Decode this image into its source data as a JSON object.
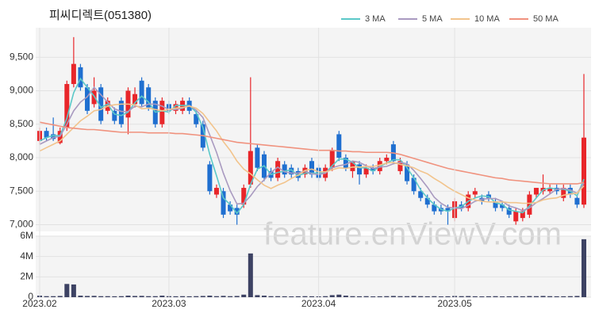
{
  "watermark": "feature.enViewV.com",
  "chart_data": [
    {
      "type": "candlestick",
      "title": "피씨디렉트(051380)",
      "up_color": "#e8262a",
      "down_color": "#1f6fd0",
      "open": [
        8250,
        8400,
        8350,
        8220,
        8450,
        9100,
        9350,
        9050,
        8800,
        9050,
        8700,
        8700,
        8850,
        8600,
        8800,
        9150,
        9050,
        8850,
        8500,
        8800,
        8700,
        8700,
        8850,
        8650,
        8500,
        7900,
        7450,
        7500,
        7300,
        7250,
        7300,
        7600,
        8150,
        8050,
        7800,
        7700,
        7900,
        7850,
        7800,
        7750,
        7950,
        7850,
        7700,
        7850,
        8350,
        8000,
        7800,
        7900,
        7750,
        7850,
        7800,
        7950,
        8200,
        7800,
        7900,
        7700,
        7500,
        7400,
        7300,
        7250,
        7250,
        7100,
        7300,
        7250,
        7450,
        7400,
        7450,
        7350,
        7300,
        7250,
        7050,
        7100,
        7150,
        7450,
        7500,
        7500,
        7550,
        7400,
        7550,
        7400,
        7300
      ],
      "high": [
        8450,
        8450,
        8600,
        8450,
        9150,
        9800,
        9400,
        9100,
        9200,
        9100,
        8900,
        8750,
        8900,
        9050,
        9050,
        9200,
        9100,
        8900,
        8900,
        8850,
        8850,
        8900,
        8900,
        8700,
        8550,
        7950,
        7600,
        7550,
        7350,
        7300,
        7600,
        9200,
        8200,
        8100,
        7850,
        8000,
        7950,
        7900,
        7850,
        7900,
        8000,
        7900,
        7900,
        8150,
        8400,
        8050,
        7950,
        7950,
        7900,
        7900,
        8000,
        8050,
        8250,
        8000,
        7950,
        7750,
        7550,
        7450,
        7350,
        7300,
        7300,
        7400,
        7350,
        7500,
        7550,
        7450,
        7500,
        7400,
        7350,
        7300,
        7250,
        7250,
        7500,
        7550,
        7750,
        7600,
        7600,
        7600,
        7600,
        7450,
        9250
      ],
      "low": [
        8200,
        8250,
        8250,
        8200,
        8400,
        9050,
        9000,
        8650,
        8750,
        8500,
        8650,
        8500,
        8450,
        8350,
        8750,
        8750,
        8700,
        8450,
        8450,
        8650,
        8650,
        8650,
        8650,
        8450,
        8100,
        7450,
        7400,
        7100,
        7150,
        7000,
        7250,
        7550,
        7800,
        7650,
        7650,
        7650,
        7700,
        7700,
        7650,
        7700,
        7700,
        7650,
        7650,
        7800,
        7950,
        7800,
        7700,
        7600,
        7700,
        7750,
        7750,
        7900,
        7900,
        7750,
        7600,
        7450,
        7350,
        7250,
        7150,
        7150,
        7000,
        7050,
        7200,
        7200,
        7400,
        7300,
        7350,
        7200,
        7200,
        7100,
        7000,
        7050,
        7100,
        7400,
        7450,
        7450,
        7450,
        7350,
        7400,
        7250,
        7250
      ],
      "close": [
        8400,
        8300,
        8280,
        8400,
        9100,
        9400,
        9050,
        8700,
        9000,
        8550,
        8850,
        8550,
        8500,
        9000,
        8950,
        8800,
        8750,
        8500,
        8850,
        8700,
        8800,
        8850,
        8700,
        8500,
        8150,
        7500,
        7550,
        7150,
        7200,
        7150,
        7550,
        8100,
        7850,
        7700,
        7700,
        7950,
        7750,
        7750,
        7700,
        7850,
        7750,
        7700,
        7850,
        8100,
        8000,
        7850,
        7950,
        7750,
        7850,
        7800,
        7950,
        8000,
        7950,
        7950,
        7650,
        7500,
        7400,
        7300,
        7200,
        7200,
        7200,
        7350,
        7250,
        7450,
        7500,
        7350,
        7400,
        7250,
        7250,
        7150,
        7200,
        7200,
        7450,
        7550,
        7550,
        7550,
        7500,
        7550,
        7450,
        7300,
        8300
      ],
      "series": [
        {
          "name": "3 MA",
          "color": "#5bc8c8",
          "values": [
            8250,
            8300,
            8330,
            8330,
            8590,
            8970,
            9180,
            9050,
            8920,
            8750,
            8800,
            8650,
            8630,
            8680,
            8820,
            8920,
            8830,
            8680,
            8700,
            8680,
            8780,
            8780,
            8780,
            8680,
            8450,
            8050,
            7730,
            7400,
            7300,
            7170,
            7300,
            7600,
            7830,
            7880,
            7750,
            7780,
            7800,
            7820,
            7730,
            7770,
            7770,
            7770,
            7770,
            7880,
            7980,
            7980,
            7930,
            7850,
            7850,
            7800,
            7870,
            7920,
            7970,
            7970,
            7850,
            7700,
            7520,
            7400,
            7300,
            7230,
            7200,
            7250,
            7270,
            7350,
            7400,
            7430,
            7420,
            7330,
            7300,
            7220,
            7200,
            7180,
            7280,
            7400,
            7520,
            7550,
            7530,
            7530,
            7500,
            7430,
            7680
          ]
        },
        {
          "name": "5 MA",
          "color": "#a99ac0",
          "values": [
            8200,
            8250,
            8300,
            8320,
            8500,
            8700,
            8830,
            8910,
            9050,
            8940,
            8830,
            8730,
            8690,
            8690,
            8770,
            8760,
            8800,
            8800,
            8770,
            8720,
            8720,
            8740,
            8780,
            8710,
            8600,
            8340,
            8080,
            7770,
            7510,
            7310,
            7320,
            7430,
            7570,
            7670,
            7780,
            7860,
            7790,
            7770,
            7770,
            7800,
            7760,
            7750,
            7770,
            7850,
            7880,
            7900,
            7950,
            7930,
            7880,
            7840,
            7860,
            7870,
            7910,
            7930,
            7910,
            7810,
            7690,
            7560,
            7410,
            7320,
            7260,
            7250,
            7240,
            7290,
            7350,
            7380,
            7390,
            7390,
            7350,
            7280,
            7250,
            7210,
            7250,
            7330,
            7390,
            7460,
            7530,
            7540,
            7520,
            7470,
            7620
          ]
        },
        {
          "name": "10 MA",
          "color": "#f2c48c",
          "values": [
            8100,
            8150,
            8200,
            8250,
            8350,
            8450,
            8550,
            8620,
            8700,
            8720,
            8770,
            8790,
            8800,
            8800,
            8790,
            8730,
            8740,
            8720,
            8700,
            8720,
            8740,
            8750,
            8770,
            8740,
            8660,
            8530,
            8400,
            8240,
            8110,
            7950,
            7830,
            7760,
            7670,
            7590,
            7540,
            7590,
            7630,
            7690,
            7740,
            7810,
            7830,
            7790,
            7790,
            7820,
            7850,
            7840,
            7860,
            7860,
            7870,
            7870,
            7890,
            7920,
            7930,
            7900,
            7880,
            7850,
            7800,
            7760,
            7690,
            7630,
            7560,
            7500,
            7450,
            7400,
            7370,
            7350,
            7340,
            7340,
            7340,
            7330,
            7330,
            7320,
            7320,
            7330,
            7370,
            7390,
            7400,
            7440,
            7460,
            7470,
            7580
          ]
        },
        {
          "name": "50 MA",
          "color": "#f0927e",
          "values": [
            8530,
            8510,
            8490,
            8470,
            8450,
            8440,
            8430,
            8420,
            8420,
            8410,
            8400,
            8390,
            8380,
            8380,
            8380,
            8380,
            8370,
            8370,
            8370,
            8370,
            8360,
            8360,
            8350,
            8340,
            8330,
            8310,
            8290,
            8270,
            8250,
            8230,
            8220,
            8210,
            8200,
            8190,
            8180,
            8170,
            8160,
            8150,
            8140,
            8130,
            8120,
            8110,
            8110,
            8110,
            8100,
            8100,
            8090,
            8090,
            8080,
            8080,
            8080,
            8080,
            8070,
            8050,
            8020,
            7990,
            7960,
            7930,
            7900,
            7870,
            7840,
            7820,
            7800,
            7780,
            7760,
            7740,
            7720,
            7700,
            7690,
            7670,
            7660,
            7650,
            7640,
            7630,
            7620,
            7610,
            7610,
            7610,
            7610,
            7610,
            7630
          ]
        }
      ],
      "ylim": [
        6900,
        9940
      ],
      "yticks": [
        {
          "value": 7000,
          "label": "7,000"
        },
        {
          "value": 7500,
          "label": "7,500"
        },
        {
          "value": 8000,
          "label": "8,000"
        },
        {
          "value": 8500,
          "label": "8,500"
        },
        {
          "value": 9000,
          "label": "9,000"
        },
        {
          "value": 9500,
          "label": "9,500"
        }
      ],
      "grid": true
    },
    {
      "type": "bar",
      "color": "#3d4263",
      "categories": [
        "2023.02",
        null,
        null,
        null,
        null,
        null,
        null,
        null,
        null,
        null,
        null,
        null,
        null,
        null,
        null,
        null,
        null,
        null,
        null,
        "2023.03",
        null,
        null,
        null,
        null,
        null,
        null,
        null,
        null,
        null,
        null,
        null,
        null,
        null,
        null,
        null,
        null,
        null,
        null,
        null,
        null,
        null,
        "2023.04",
        null,
        null,
        null,
        null,
        null,
        null,
        null,
        null,
        null,
        null,
        null,
        null,
        null,
        null,
        null,
        null,
        null,
        null,
        null,
        "2023.05",
        null,
        null,
        null,
        null,
        null,
        null,
        null,
        null,
        null,
        null,
        null,
        null,
        null,
        null,
        null,
        null,
        null,
        null,
        null
      ],
      "values": [
        150000,
        100000,
        100000,
        120000,
        1300000,
        1250000,
        150000,
        120000,
        130000,
        100000,
        100000,
        90000,
        100000,
        150000,
        120000,
        130000,
        100000,
        100000,
        150000,
        100000,
        90000,
        100000,
        90000,
        100000,
        120000,
        150000,
        100000,
        130000,
        100000,
        120000,
        250000,
        4300000,
        200000,
        150000,
        100000,
        100000,
        90000,
        80000,
        90000,
        100000,
        90000,
        80000,
        100000,
        200000,
        250000,
        150000,
        100000,
        90000,
        100000,
        80000,
        90000,
        100000,
        120000,
        100000,
        100000,
        120000,
        100000,
        90000,
        100000,
        80000,
        90000,
        120000,
        100000,
        110000,
        90000,
        80000,
        90000,
        100000,
        80000,
        90000,
        100000,
        90000,
        110000,
        100000,
        120000,
        100000,
        90000,
        90000,
        100000,
        120000,
        5700000
      ],
      "ylim": [
        0,
        6000000
      ],
      "yticks": [
        0,
        {
          "value": 2000000,
          "label": "2M"
        },
        {
          "value": 4000000,
          "label": "4M"
        },
        {
          "value": 6000000,
          "label": "6M"
        }
      ]
    }
  ]
}
